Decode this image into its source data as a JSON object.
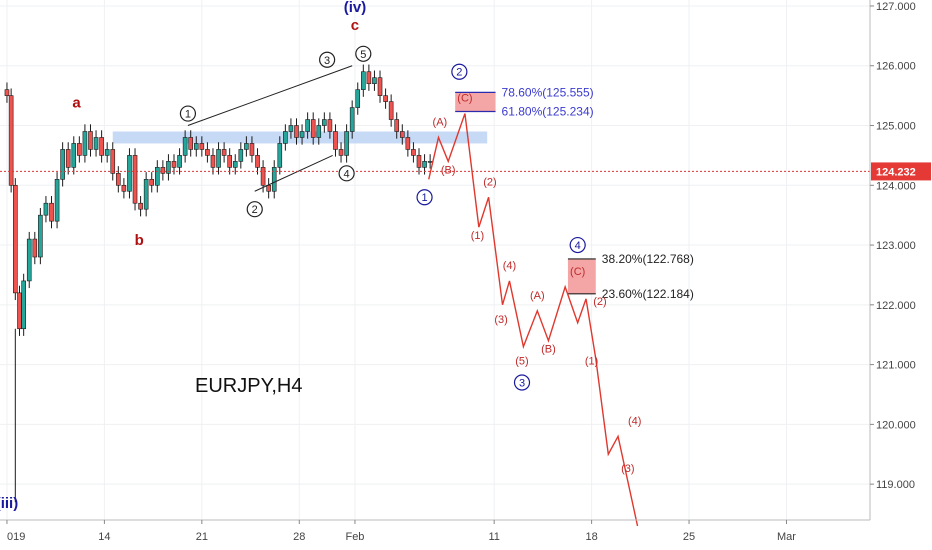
{
  "chart_data": {
    "type": "candlestick",
    "symbol_label": "EURJPY,H4",
    "price_axis": {
      "ticks": [
        "127.000",
        "126.000",
        "125.000",
        "124.000",
        "123.000",
        "122.000",
        "121.000",
        "120.000",
        "119.000"
      ],
      "tick_values": [
        127,
        126,
        125,
        124,
        123,
        122,
        121,
        120,
        119
      ],
      "ylim": [
        118.4,
        127.1
      ]
    },
    "time_axis": {
      "ticks": [
        "019",
        "14",
        "21",
        "28",
        "Feb",
        "11",
        "18",
        "25",
        "Mar"
      ],
      "tick_days": [
        7,
        14,
        21,
        28,
        32,
        42,
        49,
        56,
        63
      ],
      "xlim": [
        6.5,
        69
      ]
    },
    "current_price": {
      "value": 124.232,
      "label": "124.232"
    },
    "colors": {
      "up": "#26a69a",
      "down": "#ef5350",
      "candle": "#1a1a1a",
      "resistance_zone": "#bcd3f5",
      "projection": "#e0382e",
      "wave_blue": "#1a1a9c",
      "wave_red": "#b01010",
      "target_box": "#f4a6a6"
    },
    "price_path": [
      [
        6.6,
        125.6
      ],
      [
        7.0,
        125.5
      ],
      [
        7.3,
        124.0
      ],
      [
        7.6,
        122.2
      ],
      [
        7.9,
        121.6
      ],
      [
        8.2,
        122.4
      ],
      [
        8.6,
        123.1
      ],
      [
        9.0,
        122.8
      ],
      [
        9.4,
        123.5
      ],
      [
        9.8,
        123.7
      ],
      [
        10.2,
        123.4
      ],
      [
        10.6,
        124.1
      ],
      [
        11.0,
        124.6
      ],
      [
        11.4,
        124.3
      ],
      [
        11.8,
        124.7
      ],
      [
        12.2,
        124.5
      ],
      [
        12.6,
        124.9
      ],
      [
        13.0,
        124.6
      ],
      [
        13.4,
        124.8
      ],
      [
        13.8,
        124.5
      ],
      [
        14.2,
        124.6
      ],
      [
        14.6,
        124.2
      ],
      [
        15.0,
        124.0
      ],
      [
        15.4,
        123.9
      ],
      [
        15.8,
        124.5
      ],
      [
        16.2,
        123.7
      ],
      [
        16.6,
        123.6
      ],
      [
        17.0,
        124.1
      ],
      [
        17.4,
        124.0
      ],
      [
        17.8,
        124.3
      ],
      [
        18.2,
        124.2
      ],
      [
        18.6,
        124.4
      ],
      [
        19.0,
        124.3
      ],
      [
        19.4,
        124.5
      ],
      [
        19.8,
        124.8
      ],
      [
        20.2,
        124.6
      ],
      [
        20.6,
        124.7
      ],
      [
        21.0,
        124.6
      ],
      [
        21.4,
        124.5
      ],
      [
        21.8,
        124.3
      ],
      [
        22.2,
        124.6
      ],
      [
        22.6,
        124.5
      ],
      [
        23.0,
        124.3
      ],
      [
        23.4,
        124.4
      ],
      [
        23.8,
        124.6
      ],
      [
        24.2,
        124.7
      ],
      [
        24.6,
        124.5
      ],
      [
        25.0,
        124.3
      ],
      [
        25.4,
        124.0
      ],
      [
        25.8,
        123.9
      ],
      [
        26.2,
        124.3
      ],
      [
        26.6,
        124.7
      ],
      [
        27.0,
        124.9
      ],
      [
        27.4,
        125.0
      ],
      [
        27.8,
        124.8
      ],
      [
        28.2,
        124.9
      ],
      [
        28.6,
        125.1
      ],
      [
        29.0,
        124.8
      ],
      [
        29.4,
        125.0
      ],
      [
        29.8,
        125.1
      ],
      [
        30.2,
        124.9
      ],
      [
        30.6,
        124.6
      ],
      [
        31.0,
        124.5
      ],
      [
        31.4,
        124.9
      ],
      [
        31.8,
        125.3
      ],
      [
        32.2,
        125.6
      ],
      [
        32.6,
        125.9
      ],
      [
        33.0,
        125.7
      ],
      [
        33.4,
        125.8
      ],
      [
        33.8,
        125.5
      ],
      [
        34.2,
        125.4
      ],
      [
        34.6,
        125.1
      ],
      [
        35.0,
        124.9
      ],
      [
        35.4,
        124.8
      ],
      [
        35.8,
        124.6
      ],
      [
        36.2,
        124.5
      ],
      [
        36.6,
        124.3
      ],
      [
        37.0,
        124.4
      ],
      [
        37.4,
        124.4
      ]
    ],
    "resistance_zone": {
      "x": [
        14.6,
        41.5
      ],
      "y": [
        124.7,
        124.9
      ]
    },
    "wedge_lines": [
      {
        "from": [
          20.0,
          125.0
        ],
        "to": [
          31.8,
          126.0
        ]
      },
      {
        "from": [
          24.8,
          123.9
        ],
        "to": [
          30.4,
          124.5
        ]
      }
    ],
    "projection_path": [
      [
        37.3,
        124.1
      ],
      [
        38.0,
        124.8
      ],
      [
        38.7,
        124.4
      ],
      [
        39.9,
        125.2
      ],
      [
        40.9,
        123.3
      ],
      [
        41.6,
        123.8
      ],
      [
        42.6,
        122.0
      ],
      [
        43.1,
        122.4
      ],
      [
        44.1,
        121.3
      ],
      [
        45.1,
        121.9
      ],
      [
        45.9,
        121.4
      ],
      [
        47.1,
        122.3
      ],
      [
        48.0,
        121.7
      ],
      [
        48.6,
        122.1
      ],
      [
        49.3,
        121.1
      ],
      [
        50.2,
        119.5
      ],
      [
        50.9,
        119.8
      ],
      [
        52.3,
        118.3
      ]
    ],
    "fib_levels": [
      {
        "label": "78.60%(125.555)",
        "value": 125.555,
        "color": "#3b3bd0"
      },
      {
        "label": "61.80%(125.234)",
        "value": 125.234,
        "color": "#3b3bd0"
      },
      {
        "label": "38.20%(122.768)",
        "value": 122.768,
        "color": "#222222"
      },
      {
        "label": "23.60%(122.184)",
        "value": 122.184,
        "color": "#222222"
      }
    ],
    "wave_labels": [
      {
        "text": "(iv)",
        "x": 32.0,
        "y": 126.9,
        "color": "#1a1a9c",
        "size": 15
      },
      {
        "text": "c",
        "x": 32.0,
        "y": 126.6,
        "color": "#b01010",
        "size": 15
      },
      {
        "text": "a",
        "x": 12.0,
        "y": 125.3,
        "color": "#b01010",
        "size": 15
      },
      {
        "text": "b",
        "x": 16.5,
        "y": 123.0,
        "color": "#b01010",
        "size": 15
      },
      {
        "text": "(iii)",
        "x": 7.0,
        "y": 118.6,
        "color": "#1a1a9c",
        "size": 15
      },
      {
        "text": "(A)",
        "x": 38.1,
        "y": 125.0,
        "color": "#c02a2a",
        "size": 11
      },
      {
        "text": "(B)",
        "x": 38.7,
        "y": 124.2,
        "color": "#c02a2a",
        "size": 11
      },
      {
        "text": "(C)",
        "x": 39.9,
        "y": 125.4,
        "color": "#c02a2a",
        "size": 11
      },
      {
        "text": "(2)",
        "x": 41.7,
        "y": 124.0,
        "color": "#c02a2a",
        "size": 11
      },
      {
        "text": "(1)",
        "x": 40.8,
        "y": 123.1,
        "color": "#c02a2a",
        "size": 11
      },
      {
        "text": "(4)",
        "x": 43.1,
        "y": 122.6,
        "color": "#c02a2a",
        "size": 11
      },
      {
        "text": "(3)",
        "x": 42.5,
        "y": 121.7,
        "color": "#c02a2a",
        "size": 11
      },
      {
        "text": "(A)",
        "x": 45.1,
        "y": 122.1,
        "color": "#c02a2a",
        "size": 11
      },
      {
        "text": "(B)",
        "x": 45.9,
        "y": 121.2,
        "color": "#c02a2a",
        "size": 11
      },
      {
        "text": "(5)",
        "x": 44.0,
        "y": 121.0,
        "color": "#c02a2a",
        "size": 11
      },
      {
        "text": "(C)",
        "x": 48.0,
        "y": 122.5,
        "color": "#c02a2a",
        "size": 11
      },
      {
        "text": "(2)",
        "x": 49.6,
        "y": 122.0,
        "color": "#c02a2a",
        "size": 11
      },
      {
        "text": "(1)",
        "x": 49.0,
        "y": 121.0,
        "color": "#c02a2a",
        "size": 11
      },
      {
        "text": "(4)",
        "x": 52.1,
        "y": 120.0,
        "color": "#c02a2a",
        "size": 11
      },
      {
        "text": "(3)",
        "x": 51.6,
        "y": 119.2,
        "color": "#c02a2a",
        "size": 11
      }
    ],
    "circled_labels": [
      {
        "text": "1",
        "x": 20.0,
        "y": 125.2,
        "color": "#222222"
      },
      {
        "text": "2",
        "x": 24.8,
        "y": 123.6,
        "color": "#222222"
      },
      {
        "text": "3",
        "x": 30.0,
        "y": 126.1,
        "color": "#222222"
      },
      {
        "text": "4",
        "x": 31.4,
        "y": 124.2,
        "color": "#222222"
      },
      {
        "text": "5",
        "x": 32.6,
        "y": 126.2,
        "color": "#222222"
      },
      {
        "text": "1",
        "x": 37.0,
        "y": 123.8,
        "color": "#1a1a9c"
      },
      {
        "text": "2",
        "x": 39.5,
        "y": 125.9,
        "color": "#1a1a9c"
      },
      {
        "text": "4",
        "x": 48.0,
        "y": 123.0,
        "color": "#1a1a9c"
      },
      {
        "text": "3",
        "x": 44.0,
        "y": 120.7,
        "color": "#1a1a9c"
      }
    ]
  }
}
